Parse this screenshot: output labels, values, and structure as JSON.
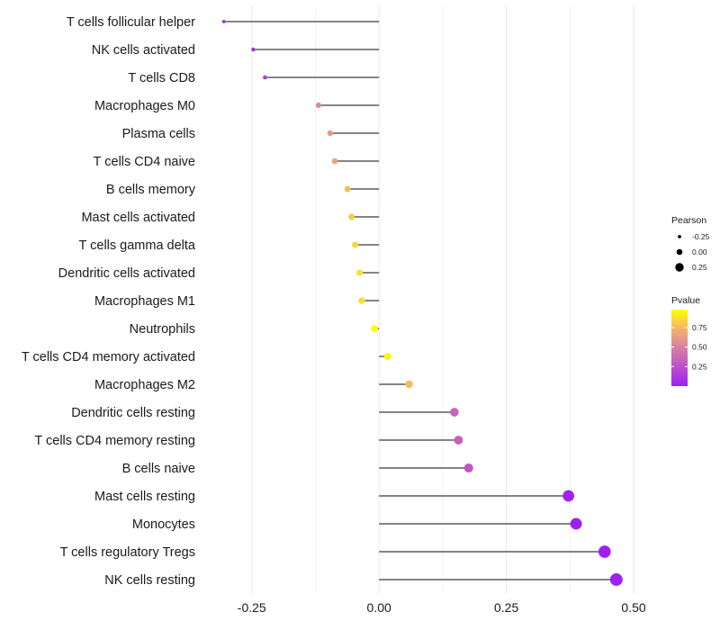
{
  "chart_data": {
    "type": "lollipop",
    "title": "",
    "xlabel": "",
    "ylabel": "",
    "xlim": [
      -0.345,
      0.56
    ],
    "x_ticks": [
      -0.25,
      0.0,
      0.25,
      0.5
    ],
    "x_tick_labels": [
      "-0.25",
      "0.00",
      "0.25",
      "0.50"
    ],
    "grid": true,
    "categories": [
      "T cells follicular helper",
      "NK cells activated",
      "T cells CD8",
      "Macrophages M0",
      "Plasma cells",
      "T cells CD4 naive",
      "B cells memory",
      "Mast cells activated",
      "T cells gamma delta",
      "Dendritic cells activated",
      "Macrophages M1",
      "Neutrophils",
      "T cells CD4 memory activated",
      "Macrophages M2",
      "Dendritic cells resting",
      "T cells CD4 memory resting",
      "B cells naive",
      "Mast cells resting",
      "Monocytes",
      "T cells regulatory  Tregs",
      "NK cells resting"
    ],
    "pearson": [
      -0.305,
      -0.247,
      -0.224,
      -0.119,
      -0.096,
      -0.087,
      -0.062,
      -0.054,
      -0.047,
      -0.038,
      -0.034,
      -0.009,
      0.017,
      0.059,
      0.148,
      0.156,
      0.176,
      0.372,
      0.387,
      0.443,
      0.466
    ],
    "pvalue": [
      0.04,
      0.1,
      0.15,
      0.55,
      0.62,
      0.66,
      0.76,
      0.8,
      0.84,
      0.88,
      0.88,
      0.98,
      0.95,
      0.76,
      0.35,
      0.33,
      0.28,
      0.0,
      0.0,
      0.0,
      0.0
    ],
    "legend_placement": "right",
    "size_legend": {
      "title": "Pearson",
      "entries": [
        {
          "label": "-0.25",
          "value": -0.25
        },
        {
          "label": "0.00",
          "value": 0.0
        },
        {
          "label": "0.25",
          "value": 0.25
        }
      ]
    },
    "color_legend": {
      "title": "Pvalue",
      "range": [
        0.0,
        0.98
      ],
      "tick_values": [
        0.75,
        0.5,
        0.25
      ],
      "tick_labels": [
        "0.75",
        "0.50",
        "0.25"
      ],
      "low_color": "#a020f0",
      "high_color": "#ffff00"
    }
  },
  "colors": {
    "segment": "#3a3a3a",
    "grid": "#ebebeb",
    "text": "#1a1a1a"
  }
}
